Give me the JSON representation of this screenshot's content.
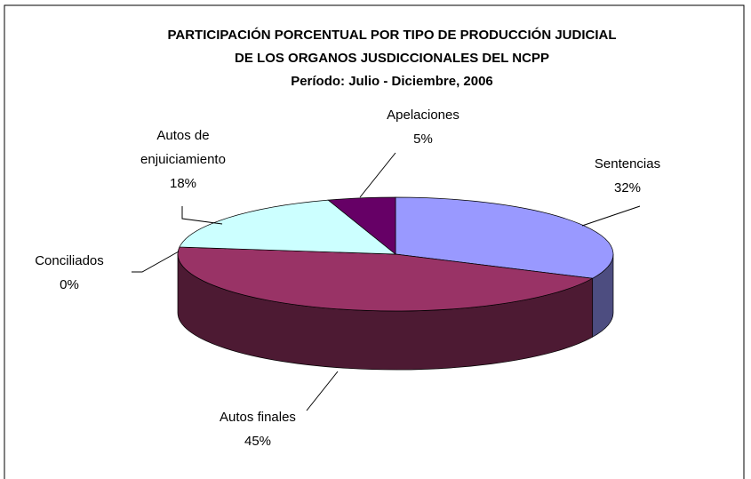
{
  "chart_data": {
    "type": "pie",
    "title": [
      "PARTICIPACIÓN PORCENTUAL POR TIPO DE PRODUCCIÓN JUDICIAL",
      "DE LOS ORGANOS JUSDICCIONALES DEL NCPP",
      "Período: Julio - Diciembre, 2006"
    ],
    "categories": [
      "Sentencias",
      "Autos finales",
      "Conciliados",
      "Autos de enjuiciamiento",
      "Apelaciones"
    ],
    "values": [
      32,
      45,
      0,
      18,
      5
    ],
    "value_labels": [
      "32%",
      "45%",
      "0%",
      "18%",
      "5%"
    ],
    "colors": [
      "#9999ff",
      "#993366",
      "#ffffcc",
      "#ccffff",
      "#660066"
    ]
  }
}
